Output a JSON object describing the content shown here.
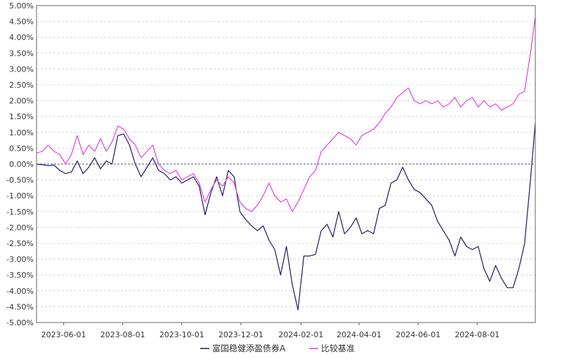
{
  "chart_data": {
    "type": "line",
    "title": "",
    "xlabel": "",
    "ylabel": "",
    "grid": true,
    "legend_position": "bottom-center",
    "y_unit": "%",
    "ylim": [
      -5.0,
      5.0
    ],
    "y_ticks": [
      "5.00%",
      "4.50%",
      "4.00%",
      "3.50%",
      "3.00%",
      "2.50%",
      "2.00%",
      "1.50%",
      "1.00%",
      "0.50%",
      "0.00%",
      "-0.50%",
      "-1.00%",
      "-1.50%",
      "-2.00%",
      "-2.50%",
      "-3.00%",
      "-3.50%",
      "-4.00%",
      "-4.50%",
      "-5.00%"
    ],
    "x_range": [
      "2023-05-04",
      "2024-09-30"
    ],
    "x_ticks": [
      "2023-06-01",
      "2023-08-01",
      "2023-10-01",
      "2023-12-01",
      "2024-02-01",
      "2024-04-01",
      "2024-06-01",
      "2024-08-01"
    ],
    "colors": {
      "fund": "#1a1a5e",
      "benchmark": "#dd44dd",
      "grid": "#bbbbbb",
      "axis": "#666666",
      "zero_line": "#1a1a5e"
    },
    "series": [
      {
        "name": "富国稳健添盈债券A",
        "points": [
          [
            "2023-05-04",
            0.0
          ],
          [
            "2023-05-10",
            -0.02
          ],
          [
            "2023-05-16",
            -0.05
          ],
          [
            "2023-05-22",
            -0.03
          ],
          [
            "2023-05-28",
            -0.2
          ],
          [
            "2023-06-03",
            -0.3
          ],
          [
            "2023-06-09",
            -0.25
          ],
          [
            "2023-06-15",
            0.1
          ],
          [
            "2023-06-21",
            -0.3
          ],
          [
            "2023-06-27",
            -0.1
          ],
          [
            "2023-07-03",
            0.2
          ],
          [
            "2023-07-09",
            -0.15
          ],
          [
            "2023-07-15",
            0.1
          ],
          [
            "2023-07-21",
            0.0
          ],
          [
            "2023-07-27",
            0.9
          ],
          [
            "2023-08-02",
            0.95
          ],
          [
            "2023-08-08",
            0.6
          ],
          [
            "2023-08-14",
            0.0
          ],
          [
            "2023-08-20",
            -0.4
          ],
          [
            "2023-08-26",
            -0.1
          ],
          [
            "2023-09-01",
            0.2
          ],
          [
            "2023-09-07",
            -0.2
          ],
          [
            "2023-09-13",
            -0.3
          ],
          [
            "2023-09-19",
            -0.5
          ],
          [
            "2023-09-25",
            -0.4
          ],
          [
            "2023-10-01",
            -0.6
          ],
          [
            "2023-10-07",
            -0.5
          ],
          [
            "2023-10-13",
            -0.4
          ],
          [
            "2023-10-19",
            -0.7
          ],
          [
            "2023-10-25",
            -1.6
          ],
          [
            "2023-10-31",
            -0.9
          ],
          [
            "2023-11-06",
            -0.4
          ],
          [
            "2023-11-12",
            -1.0
          ],
          [
            "2023-11-18",
            -0.2
          ],
          [
            "2023-11-24",
            -0.4
          ],
          [
            "2023-11-30",
            -1.5
          ],
          [
            "2023-12-06",
            -1.75
          ],
          [
            "2023-12-12",
            -1.95
          ],
          [
            "2023-12-18",
            -2.1
          ],
          [
            "2023-12-24",
            -1.95
          ],
          [
            "2023-12-30",
            -2.4
          ],
          [
            "2024-01-05",
            -2.7
          ],
          [
            "2024-01-11",
            -3.5
          ],
          [
            "2024-01-17",
            -2.6
          ],
          [
            "2024-01-23",
            -3.8
          ],
          [
            "2024-01-29",
            -4.6
          ],
          [
            "2024-02-04",
            -2.9
          ],
          [
            "2024-02-10",
            -2.9
          ],
          [
            "2024-02-16",
            -2.85
          ],
          [
            "2024-02-22",
            -2.1
          ],
          [
            "2024-02-28",
            -1.9
          ],
          [
            "2024-03-05",
            -2.3
          ],
          [
            "2024-03-11",
            -1.5
          ],
          [
            "2024-03-17",
            -2.2
          ],
          [
            "2024-03-23",
            -2.0
          ],
          [
            "2024-03-29",
            -1.7
          ],
          [
            "2024-04-04",
            -2.2
          ],
          [
            "2024-04-10",
            -2.1
          ],
          [
            "2024-04-16",
            -2.2
          ],
          [
            "2024-04-22",
            -1.4
          ],
          [
            "2024-04-28",
            -1.3
          ],
          [
            "2024-05-04",
            -0.6
          ],
          [
            "2024-05-10",
            -0.5
          ],
          [
            "2024-05-16",
            -0.1
          ],
          [
            "2024-05-22",
            -0.5
          ],
          [
            "2024-05-28",
            -0.8
          ],
          [
            "2024-06-03",
            -0.9
          ],
          [
            "2024-06-09",
            -1.1
          ],
          [
            "2024-06-15",
            -1.3
          ],
          [
            "2024-06-21",
            -1.8
          ],
          [
            "2024-06-27",
            -2.1
          ],
          [
            "2024-07-03",
            -2.4
          ],
          [
            "2024-07-09",
            -2.9
          ],
          [
            "2024-07-15",
            -2.3
          ],
          [
            "2024-07-21",
            -2.6
          ],
          [
            "2024-07-27",
            -2.7
          ],
          [
            "2024-08-02",
            -2.6
          ],
          [
            "2024-08-08",
            -3.3
          ],
          [
            "2024-08-14",
            -3.7
          ],
          [
            "2024-08-20",
            -3.2
          ],
          [
            "2024-08-26",
            -3.6
          ],
          [
            "2024-09-01",
            -3.9
          ],
          [
            "2024-09-07",
            -3.9
          ],
          [
            "2024-09-13",
            -3.3
          ],
          [
            "2024-09-19",
            -2.5
          ],
          [
            "2024-09-25",
            -0.5
          ],
          [
            "2024-09-30",
            1.3
          ]
        ]
      },
      {
        "name": "比较基准",
        "points": [
          [
            "2023-05-04",
            0.35
          ],
          [
            "2023-05-10",
            0.4
          ],
          [
            "2023-05-16",
            0.6
          ],
          [
            "2023-05-22",
            0.4
          ],
          [
            "2023-05-28",
            0.3
          ],
          [
            "2023-06-03",
            0.0
          ],
          [
            "2023-06-09",
            0.3
          ],
          [
            "2023-06-15",
            0.9
          ],
          [
            "2023-06-21",
            0.3
          ],
          [
            "2023-06-27",
            0.6
          ],
          [
            "2023-07-03",
            0.4
          ],
          [
            "2023-07-09",
            0.8
          ],
          [
            "2023-07-15",
            0.4
          ],
          [
            "2023-07-21",
            0.7
          ],
          [
            "2023-07-27",
            1.2
          ],
          [
            "2023-08-02",
            1.1
          ],
          [
            "2023-08-08",
            0.8
          ],
          [
            "2023-08-14",
            0.6
          ],
          [
            "2023-08-20",
            0.2
          ],
          [
            "2023-08-26",
            0.4
          ],
          [
            "2023-09-01",
            0.6
          ],
          [
            "2023-09-07",
            0.0
          ],
          [
            "2023-09-13",
            -0.2
          ],
          [
            "2023-09-19",
            -0.3
          ],
          [
            "2023-09-25",
            -0.2
          ],
          [
            "2023-10-01",
            -0.5
          ],
          [
            "2023-10-07",
            -0.4
          ],
          [
            "2023-10-13",
            -0.3
          ],
          [
            "2023-10-19",
            -0.6
          ],
          [
            "2023-10-25",
            -1.2
          ],
          [
            "2023-10-31",
            -0.8
          ],
          [
            "2023-11-06",
            -0.5
          ],
          [
            "2023-11-12",
            -0.7
          ],
          [
            "2023-11-18",
            -0.4
          ],
          [
            "2023-11-24",
            -0.6
          ],
          [
            "2023-11-30",
            -1.2
          ],
          [
            "2023-12-06",
            -1.4
          ],
          [
            "2023-12-12",
            -1.5
          ],
          [
            "2023-12-18",
            -1.3
          ],
          [
            "2023-12-24",
            -1.0
          ],
          [
            "2023-12-30",
            -0.6
          ],
          [
            "2024-01-05",
            -1.0
          ],
          [
            "2024-01-11",
            -1.2
          ],
          [
            "2024-01-17",
            -1.1
          ],
          [
            "2024-01-23",
            -1.5
          ],
          [
            "2024-01-29",
            -1.2
          ],
          [
            "2024-02-04",
            -0.8
          ],
          [
            "2024-02-10",
            -0.4
          ],
          [
            "2024-02-16",
            -0.2
          ],
          [
            "2024-02-22",
            0.4
          ],
          [
            "2024-02-28",
            0.6
          ],
          [
            "2024-03-05",
            0.8
          ],
          [
            "2024-03-11",
            1.0
          ],
          [
            "2024-03-17",
            0.9
          ],
          [
            "2024-03-23",
            0.8
          ],
          [
            "2024-03-29",
            0.6
          ],
          [
            "2024-04-04",
            0.9
          ],
          [
            "2024-04-10",
            1.0
          ],
          [
            "2024-04-16",
            1.1
          ],
          [
            "2024-04-22",
            1.3
          ],
          [
            "2024-04-28",
            1.6
          ],
          [
            "2024-05-04",
            1.8
          ],
          [
            "2024-05-10",
            2.1
          ],
          [
            "2024-05-16",
            2.25
          ],
          [
            "2024-05-22",
            2.4
          ],
          [
            "2024-05-28",
            2.0
          ],
          [
            "2024-06-03",
            1.9
          ],
          [
            "2024-06-09",
            2.0
          ],
          [
            "2024-06-15",
            1.9
          ],
          [
            "2024-06-21",
            2.0
          ],
          [
            "2024-06-27",
            1.8
          ],
          [
            "2024-07-03",
            1.9
          ],
          [
            "2024-07-09",
            2.1
          ],
          [
            "2024-07-15",
            1.8
          ],
          [
            "2024-07-21",
            2.0
          ],
          [
            "2024-07-27",
            2.1
          ],
          [
            "2024-08-02",
            1.8
          ],
          [
            "2024-08-08",
            2.0
          ],
          [
            "2024-08-14",
            1.8
          ],
          [
            "2024-08-20",
            1.9
          ],
          [
            "2024-08-26",
            1.7
          ],
          [
            "2024-09-01",
            1.8
          ],
          [
            "2024-09-07",
            1.9
          ],
          [
            "2024-09-13",
            2.2
          ],
          [
            "2024-09-19",
            2.3
          ],
          [
            "2024-09-25",
            3.5
          ],
          [
            "2024-09-30",
            4.65
          ]
        ]
      }
    ]
  }
}
